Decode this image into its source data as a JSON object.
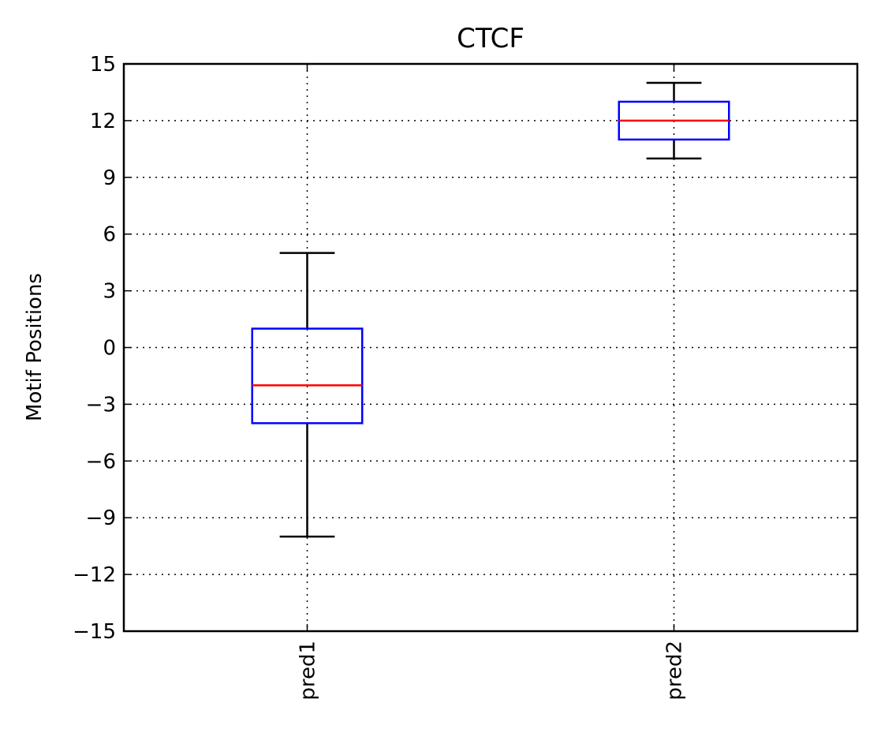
{
  "chart_data": {
    "type": "box",
    "title": "CTCF",
    "xlabel": "",
    "ylabel": "Motif Positions",
    "categories": [
      "pred1",
      "pred2"
    ],
    "ylim": [
      -15,
      15
    ],
    "yticks": [
      -15,
      -12,
      -9,
      -6,
      -3,
      0,
      3,
      6,
      9,
      12,
      15
    ],
    "ytick_labels": [
      "−15",
      "−12",
      "−9",
      "−6",
      "−3",
      "0",
      "3",
      "6",
      "9",
      "12",
      "15"
    ],
    "grid": true,
    "boxes": [
      {
        "category": "pred1",
        "whisker_low": -10,
        "q1": -4,
        "median": -2,
        "q3": 1,
        "whisker_high": 5
      },
      {
        "category": "pred2",
        "whisker_low": 10,
        "q1": 11,
        "median": 12,
        "q3": 13,
        "whisker_high": 14
      }
    ],
    "colors": {
      "box": "#0000ff",
      "median": "#ff0000",
      "whisker": "#000000",
      "grid": "#000000",
      "axes": "#000000"
    }
  }
}
